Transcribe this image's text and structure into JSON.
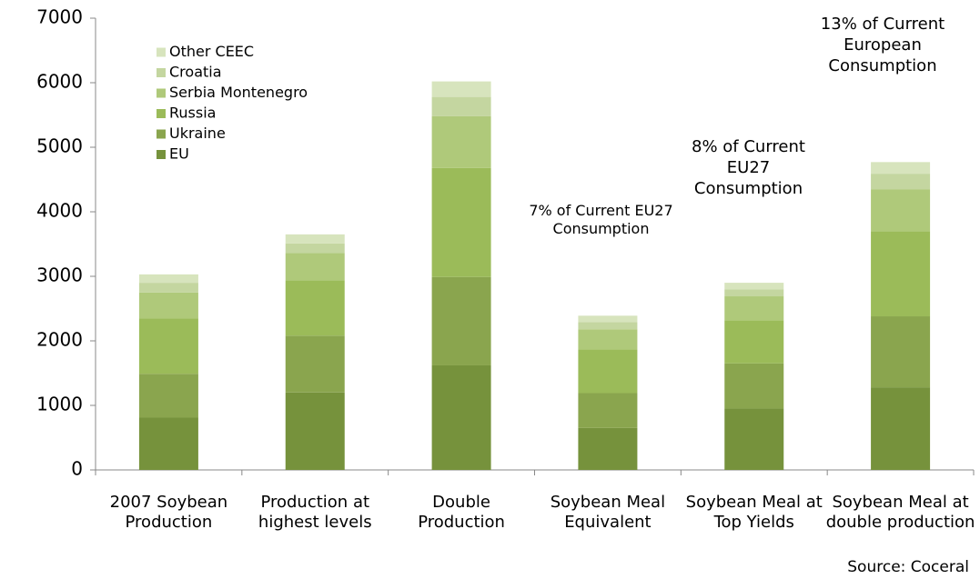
{
  "chart_data": {
    "type": "stacked_bar",
    "categories": [
      "2007 Soybean Production",
      "Production at highest levels",
      "Double Production",
      "Soybean Meal Equivalent",
      "Soybean Meal at Top Yields",
      "Soybean Meal at double production"
    ],
    "series": [
      {
        "name": "EU",
        "color": "#76923c",
        "values": [
          810,
          1200,
          1620,
          650,
          950,
          1280
        ]
      },
      {
        "name": "Ukraine",
        "color": "#8aa54e",
        "values": [
          680,
          880,
          1370,
          540,
          700,
          1100
        ]
      },
      {
        "name": "Russia",
        "color": "#9bbb59",
        "values": [
          860,
          860,
          1690,
          680,
          670,
          1320
        ]
      },
      {
        "name": "Serbia Montenegro",
        "color": "#afc97a",
        "values": [
          400,
          420,
          800,
          310,
          370,
          650
        ]
      },
      {
        "name": "Croatia",
        "color": "#c4d6a0",
        "values": [
          150,
          150,
          300,
          110,
          110,
          240
        ]
      },
      {
        "name": "Other CEEC",
        "color": "#d7e4bd",
        "values": [
          130,
          140,
          240,
          100,
          100,
          180
        ]
      }
    ],
    "ylim": [
      0,
      7000
    ],
    "yticks": [
      0,
      1000,
      2000,
      3000,
      4000,
      5000,
      6000,
      7000
    ],
    "annotations": [
      "7% of Current EU27 Consumption",
      "8% of Current EU27 Consumption",
      "13% of Current European Consumption"
    ],
    "source": "Source: Coceral"
  }
}
